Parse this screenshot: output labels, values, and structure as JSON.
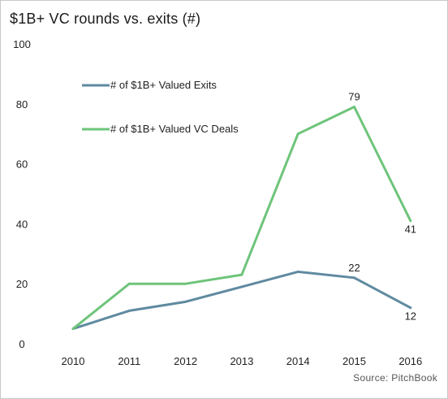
{
  "title": "$1B+ VC rounds vs. exits (#)",
  "source": "Source: PitchBook",
  "chart_data": {
    "type": "line",
    "title": "$1B+ VC rounds vs. exits (#)",
    "x": [
      "2010",
      "2011",
      "2012",
      "2013",
      "2014",
      "2015",
      "2016"
    ],
    "ylim": [
      0,
      100
    ],
    "yticks": [
      "0",
      "20",
      "40",
      "60",
      "80",
      "100"
    ],
    "grid": false,
    "legend_position": "top-left",
    "series": [
      {
        "name": "# of $1B+ Valued Exits",
        "color": "#5f8aa0",
        "values": [
          5,
          11,
          14,
          19,
          24,
          22,
          12
        ],
        "labels": [
          null,
          null,
          null,
          null,
          null,
          "22",
          "12"
        ]
      },
      {
        "name": "# of $1B+ Valued VC Deals",
        "color": "#6ec47a",
        "values": [
          5,
          20,
          20,
          23,
          70,
          79,
          41
        ],
        "labels": [
          null,
          null,
          null,
          null,
          null,
          "79",
          "41"
        ]
      }
    ]
  }
}
